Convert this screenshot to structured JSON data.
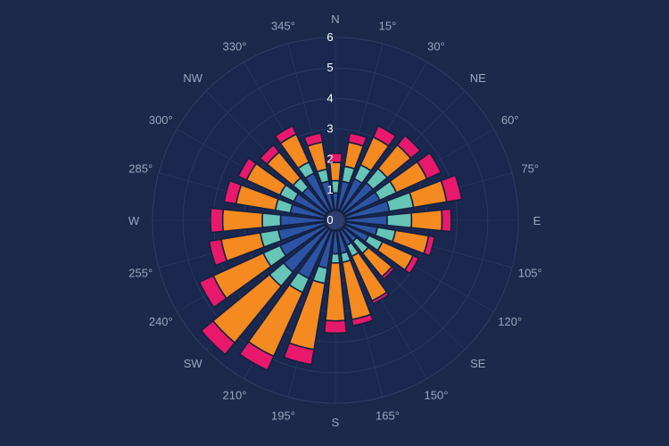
{
  "chart_data": {
    "type": "bar",
    "subtype": "polar-stacked-bar",
    "title": "",
    "radial_axis": {
      "range": [
        0,
        6
      ],
      "ticks": [
        "0",
        "1",
        "2",
        "3",
        "4",
        "5",
        "6"
      ]
    },
    "angular_axis": {
      "rotation": "clockwise",
      "zero": "north",
      "labels": [
        "N",
        "15°",
        "30°",
        "NE",
        "60°",
        "75°",
        "E",
        "105°",
        "120°",
        "SE",
        "150°",
        "165°",
        "S",
        "195°",
        "210°",
        "SW",
        "240°",
        "255°",
        "W",
        "285°",
        "300°",
        "NW",
        "330°",
        "345°"
      ]
    },
    "categories": [
      0,
      15,
      30,
      45,
      60,
      75,
      90,
      105,
      120,
      135,
      150,
      165,
      180,
      195,
      210,
      225,
      240,
      255,
      270,
      285,
      300,
      315,
      330,
      345
    ],
    "series": [
      {
        "color": "#2c54a3",
        "values": [
          0.9,
          1.3,
          1.5,
          1.6,
          1.6,
          1.8,
          1.7,
          1.4,
          1.2,
          0.9,
          0.9,
          1.1,
          1.1,
          1.6,
          2.1,
          2.2,
          2.0,
          1.9,
          1.8,
          1.5,
          1.5,
          1.4,
          1.7,
          1.3
        ]
      },
      {
        "color": "#66c5b6",
        "values": [
          0.4,
          0.5,
          0.5,
          0.6,
          0.6,
          0.8,
          0.8,
          0.6,
          0.5,
          0.5,
          0.4,
          0.3,
          0.3,
          0.5,
          0.5,
          0.6,
          0.6,
          0.6,
          0.6,
          0.5,
          0.5,
          0.4,
          0.4,
          0.4
        ]
      },
      {
        "color": "#f58a20",
        "values": [
          0.6,
          0.8,
          1.0,
          1.0,
          1.1,
          1.1,
          1.0,
          1.1,
          1.1,
          1.0,
          1.6,
          1.9,
          1.9,
          2.2,
          2.3,
          2.4,
          1.8,
          1.3,
          1.3,
          1.3,
          1.2,
          1.1,
          1.0,
          0.9
        ]
      },
      {
        "color": "#e8196c",
        "values": [
          0.3,
          0.3,
          0.4,
          0.4,
          0.5,
          0.5,
          0.3,
          0.2,
          0.2,
          0.1,
          0.1,
          0.2,
          0.4,
          0.5,
          0.5,
          0.5,
          0.5,
          0.4,
          0.4,
          0.4,
          0.3,
          0.3,
          0.3,
          0.3
        ]
      }
    ],
    "colors": {
      "background": "#1b2a4a",
      "disc": "#1a2850",
      "grid": "#2e3d63",
      "hub": "#2c3f6d",
      "separator": "#142040"
    }
  }
}
